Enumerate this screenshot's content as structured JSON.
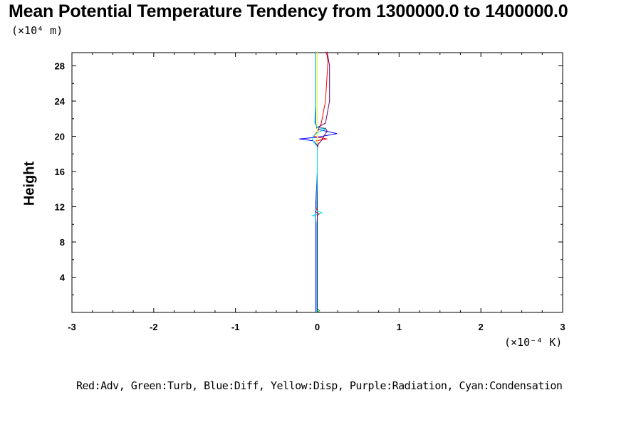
{
  "chart_data": {
    "type": "line",
    "title": "Mean Potential Temperature Tendency from 1300000.0 to 1400000.0",
    "ylabel": "Height",
    "y_unit": "(×10⁴ m)",
    "x_unit": "(×10⁻⁴ K)",
    "legend_text": "Red:Adv, Green:Turb, Blue:Diff, Yellow:Disp, Purple:Radiation, Cyan:Condensation",
    "xlim": [
      -3,
      3
    ],
    "ylim": [
      0,
      29.5
    ],
    "x_ticks": [
      "-3",
      "-2",
      "-1",
      "0",
      "1",
      "2",
      "3"
    ],
    "y_ticks": [
      "4",
      "8",
      "12",
      "16",
      "20",
      "24",
      "28"
    ],
    "grid": false,
    "series": [
      {
        "name": "Adv",
        "color": "#ff0000",
        "x": [
          0.0,
          0.0,
          0.0,
          0.0,
          0.0,
          0.03,
          -0.02,
          0.0,
          0.0,
          0.0,
          0.01,
          0.0,
          -0.01,
          0.12,
          -0.05,
          0.0,
          0.05,
          0.1,
          0.12,
          0.13,
          0.12,
          0.1
        ],
        "y": [
          0.0,
          4.0,
          8.0,
          10.6,
          11.0,
          11.2,
          11.4,
          12.0,
          16.0,
          18.5,
          19.0,
          19.4,
          19.5,
          19.7,
          20.0,
          20.5,
          21.5,
          24.0,
          27.0,
          28.5,
          29.2,
          29.6
        ]
      },
      {
        "name": "Turb",
        "color": "#00aa00",
        "x": [
          0.0,
          0.03,
          0.0,
          0.0,
          0.0,
          0.0,
          0.0,
          0.0,
          0.0,
          0.0
        ],
        "y": [
          0.0,
          0.2,
          0.4,
          4.0,
          10.0,
          12.0,
          16.0,
          20.0,
          24.0,
          29.6
        ]
      },
      {
        "name": "Diff",
        "color": "#0000ff",
        "x": [
          -0.02,
          -0.02,
          -0.02,
          -0.02,
          0.0,
          0.0,
          -0.05,
          -0.22,
          0.0,
          0.24,
          0.0,
          -0.02,
          -0.02,
          -0.02,
          -0.02
        ],
        "y": [
          0.0,
          4.0,
          10.0,
          12.0,
          16.0,
          19.0,
          19.5,
          19.7,
          19.9,
          20.3,
          20.8,
          21.5,
          24.0,
          28.0,
          29.6
        ]
      },
      {
        "name": "Disp",
        "color": "#ffff00",
        "x": [
          0.0,
          0.0,
          0.0,
          0.0
        ],
        "y": [
          0.0,
          10.0,
          20.0,
          29.6
        ]
      },
      {
        "name": "Radiation",
        "color": "#660066",
        "x": [
          0.0,
          0.0,
          0.0,
          0.0,
          0.05,
          0.08,
          0.1,
          0.12,
          0.1,
          0.0,
          0.1,
          0.15,
          0.15,
          0.12
        ],
        "y": [
          0.0,
          10.0,
          16.0,
          19.0,
          19.5,
          20.0,
          20.3,
          20.6,
          20.9,
          21.0,
          21.5,
          24.0,
          28.0,
          29.6
        ]
      },
      {
        "name": "Condensation",
        "color": "#00e5e5",
        "x": [
          -0.01,
          -0.01,
          -0.01,
          -0.02,
          -0.06,
          0.06,
          -0.02,
          -0.01,
          0.0,
          0.0,
          -0.03,
          -0.06,
          -0.05,
          0.0,
          0.1,
          0.0,
          -0.03,
          -0.03,
          -0.02,
          -0.02,
          -0.02
        ],
        "y": [
          0.0,
          4.0,
          10.0,
          10.9,
          11.0,
          11.3,
          11.6,
          12.0,
          16.0,
          18.8,
          19.2,
          19.6,
          20.0,
          20.4,
          20.8,
          21.0,
          21.5,
          21.8,
          24.0,
          28.0,
          29.6
        ]
      }
    ]
  }
}
